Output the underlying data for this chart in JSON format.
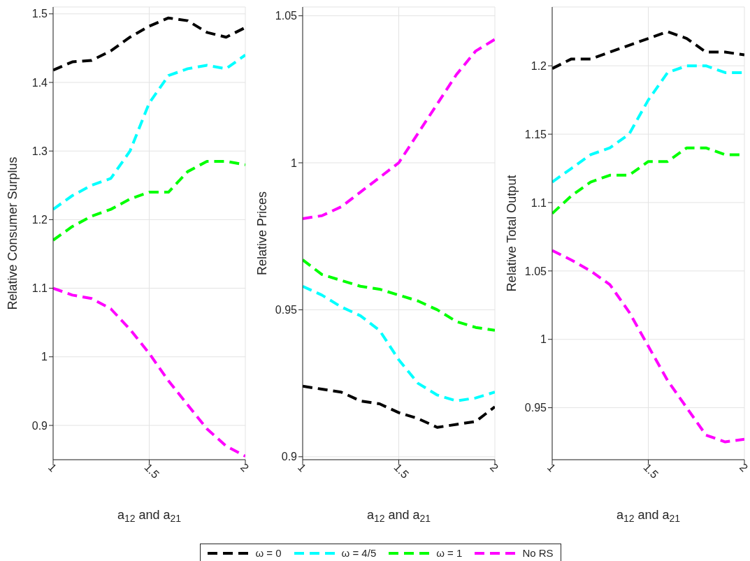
{
  "chart_data": [
    {
      "type": "line",
      "ylabel": "Relative Consumer Surplus",
      "xlabel": "a$_{12}$ and a$_{21}$",
      "x": [
        1,
        1.1,
        1.2,
        1.3,
        1.4,
        1.5,
        1.6,
        1.7,
        1.8,
        1.9,
        2
      ],
      "xlim": [
        1,
        2
      ],
      "xticks": [
        1,
        1.5,
        2
      ],
      "ylim": [
        0.85,
        1.51
      ],
      "yticks": [
        0.9,
        1,
        1.1,
        1.2,
        1.3,
        1.4,
        1.5
      ],
      "grid": true,
      "legend": "bottom",
      "line_style": "dashed",
      "marker": "none",
      "series": [
        {
          "name": "ω = 0",
          "color": "#000000",
          "values": [
            1.418,
            1.43,
            1.432,
            1.446,
            1.466,
            1.482,
            1.494,
            1.49,
            1.473,
            1.466,
            1.48
          ]
        },
        {
          "name": "ω = 4/5",
          "color": "#00ffff",
          "values": [
            1.215,
            1.235,
            1.25,
            1.26,
            1.3,
            1.37,
            1.41,
            1.42,
            1.425,
            1.42,
            1.44
          ]
        },
        {
          "name": "ω = 1",
          "color": "#00ff00",
          "values": [
            1.17,
            1.19,
            1.205,
            1.215,
            1.23,
            1.24,
            1.24,
            1.27,
            1.285,
            1.285,
            1.28
          ]
        },
        {
          "name": "No RS",
          "color": "#ff00ff",
          "values": [
            1.1,
            1.09,
            1.085,
            1.07,
            1.04,
            1.005,
            0.965,
            0.93,
            0.895,
            0.87,
            0.855
          ]
        }
      ]
    },
    {
      "type": "line",
      "ylabel": "Relative Prices",
      "xlabel": "a$_{12}$ and a$_{21}$",
      "x": [
        1,
        1.1,
        1.2,
        1.3,
        1.4,
        1.5,
        1.6,
        1.7,
        1.8,
        1.9,
        2
      ],
      "xlim": [
        1,
        2
      ],
      "xticks": [
        1,
        1.5,
        2
      ],
      "ylim": [
        0.899,
        1.053
      ],
      "yticks": [
        0.9,
        0.95,
        1,
        1.05
      ],
      "grid": true,
      "line_style": "dashed",
      "marker": "none",
      "series": [
        {
          "name": "ω = 0",
          "color": "#000000",
          "values": [
            0.924,
            0.923,
            0.922,
            0.919,
            0.918,
            0.915,
            0.913,
            0.91,
            0.911,
            0.912,
            0.917
          ]
        },
        {
          "name": "ω = 4/5",
          "color": "#00ffff",
          "values": [
            0.958,
            0.955,
            0.951,
            0.948,
            0.943,
            0.933,
            0.925,
            0.921,
            0.919,
            0.92,
            0.922
          ]
        },
        {
          "name": "ω = 1",
          "color": "#00ff00",
          "values": [
            0.967,
            0.962,
            0.96,
            0.958,
            0.957,
            0.955,
            0.953,
            0.95,
            0.946,
            0.944,
            0.943
          ]
        },
        {
          "name": "No RS",
          "color": "#ff00ff",
          "values": [
            0.981,
            0.982,
            0.985,
            0.99,
            0.995,
            1.0,
            1.01,
            1.02,
            1.03,
            1.038,
            1.042
          ]
        }
      ]
    },
    {
      "type": "line",
      "ylabel": "Relative Total Output",
      "xlabel": "a$_{12}$ and a$_{21}$",
      "x": [
        1,
        1.1,
        1.2,
        1.3,
        1.4,
        1.5,
        1.6,
        1.7,
        1.8,
        1.9,
        2
      ],
      "xlim": [
        1,
        2
      ],
      "xticks": [
        1,
        1.5,
        2
      ],
      "ylim": [
        0.912,
        1.243
      ],
      "yticks": [
        0.95,
        1,
        1.05,
        1.1,
        1.15,
        1.2
      ],
      "grid": true,
      "line_style": "dashed",
      "marker": "none",
      "series": [
        {
          "name": "ω = 0",
          "color": "#000000",
          "values": [
            1.198,
            1.205,
            1.205,
            1.21,
            1.215,
            1.22,
            1.225,
            1.22,
            1.21,
            1.21,
            1.208
          ]
        },
        {
          "name": "ω = 4/5",
          "color": "#00ffff",
          "values": [
            1.115,
            1.125,
            1.135,
            1.14,
            1.15,
            1.175,
            1.195,
            1.2,
            1.2,
            1.195,
            1.195
          ]
        },
        {
          "name": "ω = 1",
          "color": "#00ff00",
          "values": [
            1.092,
            1.105,
            1.115,
            1.12,
            1.12,
            1.13,
            1.13,
            1.14,
            1.14,
            1.135,
            1.135
          ]
        },
        {
          "name": "No RS",
          "color": "#ff00ff",
          "values": [
            1.065,
            1.058,
            1.05,
            1.04,
            1.02,
            0.995,
            0.97,
            0.95,
            0.93,
            0.925,
            0.927
          ]
        }
      ]
    }
  ]
}
